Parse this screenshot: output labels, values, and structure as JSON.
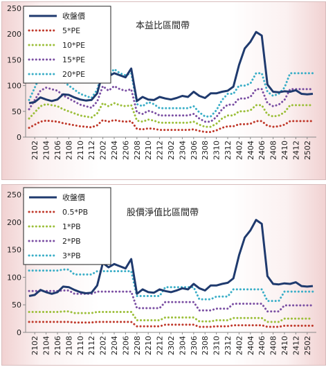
{
  "chart_data": [
    {
      "type": "line",
      "title": "本益比區間帶",
      "ylim": [
        0,
        250
      ],
      "yticks": [
        0,
        50,
        100,
        150,
        200,
        250
      ],
      "xticklabels": [
        "2102",
        "2104",
        "2106",
        "2108",
        "2110",
        "2112",
        "2202",
        "2204",
        "2206",
        "2208",
        "2210",
        "2212",
        "2302",
        "2304",
        "2306",
        "2308",
        "2310",
        "2312",
        "2402",
        "2404",
        "2406",
        "2408",
        "2410",
        "2412",
        "2502"
      ],
      "legend_position": "top-left",
      "grid": false,
      "x": [
        "2101",
        "2102",
        "2103",
        "2104",
        "2105",
        "2106",
        "2107",
        "2108",
        "2109",
        "2110",
        "2111",
        "2112",
        "2201",
        "2202",
        "2203",
        "2204",
        "2205",
        "2206",
        "2207",
        "2208",
        "2209",
        "2210",
        "2211",
        "2212",
        "2301",
        "2302",
        "2303",
        "2304",
        "2305",
        "2306",
        "2307",
        "2308",
        "2309",
        "2310",
        "2311",
        "2312",
        "2401",
        "2402",
        "2403",
        "2404",
        "2405",
        "2406",
        "2407",
        "2408",
        "2409",
        "2410",
        "2411",
        "2412",
        "2501",
        "2502",
        "2503"
      ],
      "series": [
        {
          "name": "收盤價",
          "color": "#1f3a6e",
          "style": "solid",
          "values": [
            66,
            68,
            77,
            73,
            70,
            73,
            83,
            82,
            77,
            73,
            71,
            72,
            85,
            126,
            118,
            124,
            120,
            116,
            133,
            70,
            78,
            73,
            72,
            78,
            75,
            73,
            76,
            80,
            78,
            88,
            80,
            76,
            85,
            85,
            88,
            90,
            98,
            140,
            172,
            185,
            204,
            197,
            102,
            88,
            87,
            89,
            88,
            91,
            84,
            83,
            84
          ]
        },
        {
          "name": "5*PE",
          "color": "#c0392b",
          "style": "dotted",
          "values": [
            18,
            24,
            30,
            32,
            31,
            30,
            27,
            25,
            23,
            21,
            20,
            19,
            23,
            33,
            30,
            33,
            31,
            30,
            31,
            16,
            15,
            17,
            16,
            14,
            14,
            14,
            14,
            14,
            14,
            15,
            12,
            10,
            10,
            13,
            18,
            21,
            21,
            25,
            25,
            26,
            31,
            31,
            22,
            20,
            21,
            24,
            31,
            31,
            31,
            31,
            31
          ]
        },
        {
          "name": "10*PE",
          "color": "#9cbf3a",
          "style": "dotted",
          "values": [
            36,
            48,
            60,
            64,
            62,
            60,
            54,
            50,
            46,
            42,
            40,
            38,
            46,
            66,
            60,
            66,
            62,
            60,
            62,
            32,
            30,
            34,
            32,
            28,
            28,
            28,
            28,
            28,
            28,
            30,
            24,
            20,
            20,
            26,
            36,
            42,
            42,
            50,
            50,
            52,
            62,
            62,
            44,
            40,
            42,
            48,
            62,
            62,
            62,
            62,
            62
          ]
        },
        {
          "name": "15*PE",
          "color": "#7b4fa3",
          "style": "dotted",
          "values": [
            54,
            72,
            90,
            96,
            93,
            90,
            81,
            75,
            69,
            63,
            60,
            57,
            69,
            99,
            90,
            99,
            93,
            90,
            93,
            48,
            45,
            51,
            48,
            42,
            42,
            42,
            42,
            42,
            42,
            45,
            36,
            30,
            30,
            39,
            54,
            63,
            63,
            75,
            75,
            78,
            93,
            93,
            66,
            60,
            63,
            72,
            93,
            93,
            93,
            93,
            93
          ]
        },
        {
          "name": "20*PE",
          "color": "#3aaec7",
          "style": "dotted",
          "values": [
            72,
            96,
            120,
            128,
            124,
            120,
            108,
            100,
            92,
            84,
            80,
            76,
            92,
            132,
            120,
            132,
            124,
            120,
            124,
            64,
            60,
            68,
            64,
            56,
            56,
            56,
            56,
            56,
            56,
            60,
            48,
            40,
            40,
            52,
            72,
            84,
            84,
            100,
            100,
            104,
            124,
            124,
            88,
            80,
            84,
            96,
            124,
            124,
            124,
            124,
            124
          ]
        }
      ]
    },
    {
      "type": "line",
      "title": "股價淨值比區間帶",
      "ylim": [
        0,
        250
      ],
      "yticks": [
        0,
        50,
        100,
        150,
        200,
        250
      ],
      "xticklabels": [
        "2102",
        "2104",
        "2106",
        "2108",
        "2110",
        "2112",
        "2202",
        "2204",
        "2206",
        "2208",
        "2210",
        "2212",
        "2302",
        "2304",
        "2306",
        "2308",
        "2310",
        "2312",
        "2402",
        "2404",
        "2406",
        "2408",
        "2410",
        "2412",
        "2502"
      ],
      "legend_position": "top-left",
      "grid": false,
      "x": [
        "2101",
        "2102",
        "2103",
        "2104",
        "2105",
        "2106",
        "2107",
        "2108",
        "2109",
        "2110",
        "2111",
        "2112",
        "2201",
        "2202",
        "2203",
        "2204",
        "2205",
        "2206",
        "2207",
        "2208",
        "2209",
        "2210",
        "2211",
        "2212",
        "2301",
        "2302",
        "2303",
        "2304",
        "2305",
        "2306",
        "2307",
        "2308",
        "2309",
        "2310",
        "2311",
        "2312",
        "2401",
        "2402",
        "2403",
        "2404",
        "2405",
        "2406",
        "2407",
        "2408",
        "2409",
        "2410",
        "2411",
        "2412",
        "2501",
        "2502",
        "2503"
      ],
      "series": [
        {
          "name": "收盤價",
          "color": "#1f3a6e",
          "style": "solid",
          "values": [
            66,
            68,
            77,
            73,
            70,
            73,
            83,
            82,
            77,
            73,
            71,
            72,
            85,
            126,
            118,
            124,
            120,
            116,
            133,
            70,
            78,
            73,
            72,
            78,
            75,
            73,
            76,
            80,
            78,
            88,
            80,
            76,
            85,
            85,
            88,
            90,
            98,
            140,
            172,
            185,
            204,
            197,
            102,
            88,
            87,
            89,
            88,
            91,
            84,
            83,
            84
          ]
        },
        {
          "name": "0.5*PB",
          "color": "#c0392b",
          "style": "dotted",
          "values": [
            19,
            19,
            19,
            19,
            19,
            19,
            19,
            19,
            18,
            18,
            18,
            18,
            19,
            19,
            19,
            19,
            19,
            19,
            19,
            11,
            11,
            11,
            11,
            11,
            14,
            14,
            14,
            14,
            14,
            14,
            10,
            10,
            10,
            11,
            11,
            11,
            13,
            13,
            13,
            13,
            13,
            13,
            10,
            10,
            10,
            12,
            12,
            12,
            12,
            12,
            12
          ]
        },
        {
          "name": "1*PB",
          "color": "#9cbf3a",
          "style": "dotted",
          "values": [
            37,
            37,
            37,
            37,
            37,
            37,
            38,
            38,
            35,
            35,
            35,
            35,
            37,
            37,
            37,
            37,
            37,
            37,
            37,
            22,
            22,
            22,
            22,
            22,
            27,
            27,
            27,
            27,
            27,
            27,
            20,
            20,
            20,
            22,
            22,
            22,
            26,
            26,
            26,
            26,
            26,
            26,
            19,
            19,
            19,
            25,
            25,
            25,
            25,
            25,
            25
          ]
        },
        {
          "name": "2*PB",
          "color": "#7b4fa3",
          "style": "dotted",
          "values": [
            75,
            75,
            75,
            75,
            75,
            75,
            76,
            76,
            70,
            70,
            70,
            70,
            74,
            74,
            74,
            74,
            74,
            74,
            74,
            44,
            44,
            44,
            44,
            44,
            55,
            55,
            55,
            55,
            55,
            55,
            40,
            40,
            40,
            43,
            43,
            43,
            52,
            52,
            52,
            52,
            52,
            52,
            38,
            38,
            38,
            49,
            49,
            49,
            49,
            49,
            49
          ]
        },
        {
          "name": "3*PB",
          "color": "#3aaec7",
          "style": "dotted",
          "values": [
            112,
            112,
            112,
            112,
            112,
            112,
            114,
            114,
            105,
            105,
            105,
            105,
            111,
            111,
            111,
            111,
            111,
            111,
            111,
            66,
            66,
            66,
            66,
            66,
            82,
            82,
            82,
            82,
            82,
            82,
            60,
            60,
            60,
            65,
            65,
            65,
            78,
            78,
            78,
            78,
            78,
            78,
            57,
            57,
            57,
            74,
            74,
            74,
            74,
            74,
            74
          ]
        }
      ]
    }
  ]
}
